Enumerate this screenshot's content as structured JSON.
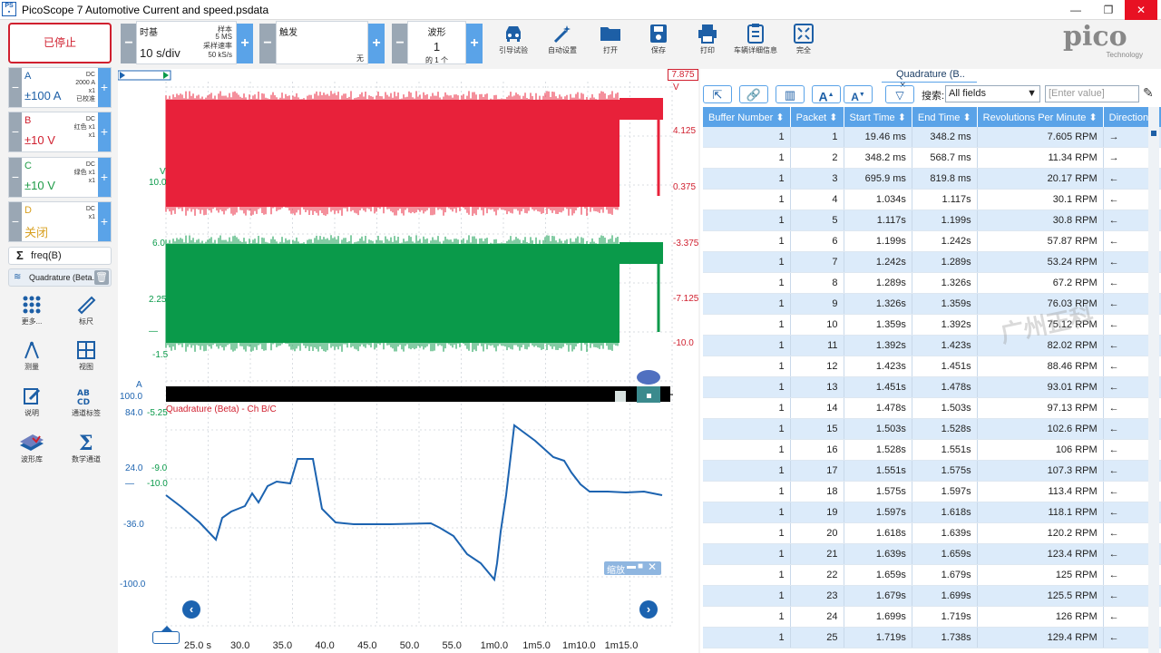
{
  "window": {
    "title": "PicoScope 7 Automotive Current and speed.psdata",
    "controls": [
      "—",
      "❐",
      "✕"
    ]
  },
  "toolbar": {
    "stop_label": "已停止",
    "timebase_label": "时基",
    "timebase_value": "10 s/div",
    "sample_label1": "样本",
    "sample_value1": "5 MS",
    "sample_label2": "采样速率",
    "sample_value2": "50 kS/s",
    "trigger_label": "触发",
    "trigger_value": "无",
    "waveform_label": "波形",
    "waveform_value": "1",
    "waveform_of": "的 1 个",
    "tools": [
      "引导试验",
      "自动设置",
      "打开",
      "保存",
      "打印",
      "车辆详细信息",
      "完全"
    ],
    "logo_text": "pico",
    "logo_sub": "Technology"
  },
  "channels": [
    {
      "name": "A",
      "range": "±100 A",
      "info": [
        "DC",
        "2000 A",
        "x1",
        "已校准"
      ],
      "color": "#1d5fa6"
    },
    {
      "name": "B",
      "range": "±10 V",
      "info": [
        "DC",
        "红色 x1",
        "x1"
      ],
      "color": "#d0202f"
    },
    {
      "name": "C",
      "range": "±10 V",
      "info": [
        "DC",
        "绿色 x1",
        "x1"
      ],
      "color": "#1e9b47"
    },
    {
      "name": "D",
      "range": "关闭",
      "info": [
        "DC",
        "x1"
      ],
      "color": "#d8a020"
    }
  ],
  "math": {
    "label": "freq(B)"
  },
  "decoder": {
    "label": "Quadrature (Beta..."
  },
  "lefttools": [
    "更多...",
    "标尺",
    "测量",
    "视图",
    "说明",
    "通道标签",
    "波形库",
    "数学通道"
  ],
  "scope": {
    "top_right_value": "7.875",
    "top_right_unit": "V",
    "right_ticks": [
      "4.125",
      "0.375",
      "-3.375",
      "-7.125",
      "-10.0"
    ],
    "left_ticks_green": [
      "6.0",
      "2.25",
      "—",
      "-1.5"
    ],
    "red_left_label": "V",
    "red_left_value": "10.0",
    "a_label": "A",
    "a_value": "100.0",
    "a_value2": "84.0",
    "b_value": "-5.25",
    "decoder_title": "Quadrature (Beta) - Ch B/C",
    "blue_ticks": [
      "24.0",
      "—",
      "-36.0",
      "-100.0"
    ],
    "mid_ticks": [
      "-9.0",
      "-10.0"
    ],
    "zoom_label": "缩放",
    "x_ticks": [
      "25.0 s",
      "30.0",
      "35.0",
      "40.0",
      "45.0",
      "50.0",
      "55.0",
      "1m0.0",
      "1m5.0",
      "1m10.0",
      "1m15.0"
    ]
  },
  "table_panel": {
    "tab_title": "Quadrature (B..",
    "search_label": "搜索:",
    "search_field": "All fields",
    "search_placeholder": "[Enter value]",
    "columns": [
      "Buffer Number",
      "Packet",
      "Start Time",
      "End Time",
      "Revolutions Per Minute",
      "Direction"
    ],
    "rows": [
      [
        "1",
        "1",
        "19.46 ms",
        "348.2 ms",
        "7.605 RPM",
        "→"
      ],
      [
        "1",
        "2",
        "348.2 ms",
        "568.7 ms",
        "11.34 RPM",
        "→"
      ],
      [
        "1",
        "3",
        "695.9 ms",
        "819.8 ms",
        "20.17 RPM",
        "←"
      ],
      [
        "1",
        "4",
        "1.034s",
        "1.117s",
        "30.1 RPM",
        "←"
      ],
      [
        "1",
        "5",
        "1.117s",
        "1.199s",
        "30.8 RPM",
        "←"
      ],
      [
        "1",
        "6",
        "1.199s",
        "1.242s",
        "57.87 RPM",
        "←"
      ],
      [
        "1",
        "7",
        "1.242s",
        "1.289s",
        "53.24 RPM",
        "←"
      ],
      [
        "1",
        "8",
        "1.289s",
        "1.326s",
        "67.2 RPM",
        "←"
      ],
      [
        "1",
        "9",
        "1.326s",
        "1.359s",
        "76.03 RPM",
        "←"
      ],
      [
        "1",
        "10",
        "1.359s",
        "1.392s",
        "75.12 RPM",
        "←"
      ],
      [
        "1",
        "11",
        "1.392s",
        "1.423s",
        "82.02 RPM",
        "←"
      ],
      [
        "1",
        "12",
        "1.423s",
        "1.451s",
        "88.46 RPM",
        "←"
      ],
      [
        "1",
        "13",
        "1.451s",
        "1.478s",
        "93.01 RPM",
        "←"
      ],
      [
        "1",
        "14",
        "1.478s",
        "1.503s",
        "97.13 RPM",
        "←"
      ],
      [
        "1",
        "15",
        "1.503s",
        "1.528s",
        "102.6 RPM",
        "←"
      ],
      [
        "1",
        "16",
        "1.528s",
        "1.551s",
        "106 RPM",
        "←"
      ],
      [
        "1",
        "17",
        "1.551s",
        "1.575s",
        "107.3 RPM",
        "←"
      ],
      [
        "1",
        "18",
        "1.575s",
        "1.597s",
        "113.4 RPM",
        "←"
      ],
      [
        "1",
        "19",
        "1.597s",
        "1.618s",
        "118.1 RPM",
        "←"
      ],
      [
        "1",
        "20",
        "1.618s",
        "1.639s",
        "120.2 RPM",
        "←"
      ],
      [
        "1",
        "21",
        "1.639s",
        "1.659s",
        "123.4 RPM",
        "←"
      ],
      [
        "1",
        "22",
        "1.659s",
        "1.679s",
        "125 RPM",
        "←"
      ],
      [
        "1",
        "23",
        "1.679s",
        "1.699s",
        "125.5 RPM",
        "←"
      ],
      [
        "1",
        "24",
        "1.699s",
        "1.719s",
        "126 RPM",
        "←"
      ],
      [
        "1",
        "25",
        "1.719s",
        "1.738s",
        "129.4 RPM",
        "←"
      ]
    ]
  },
  "colors": {
    "accent": "#5aa3e8",
    "red": "#e8213a",
    "green": "#0a9a4a",
    "blue": "#1c63b0"
  }
}
